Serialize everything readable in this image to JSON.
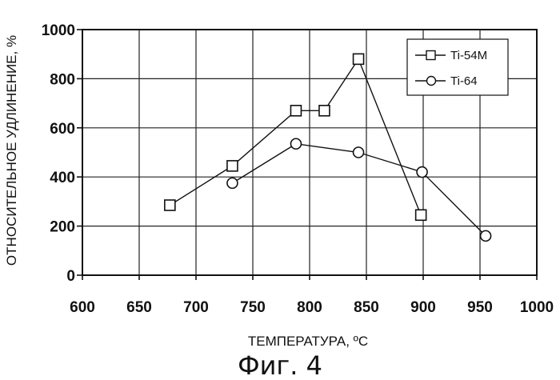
{
  "chart_data": {
    "type": "line",
    "title": "",
    "xlabel": "ТЕМПЕРАТУРА, ºС",
    "ylabel": "ОТНОСИТЕЛЬНОЕ УДЛИНЕНИЕ, %",
    "xlim": [
      600,
      1000
    ],
    "ylim": [
      0,
      1000
    ],
    "x_ticks": [
      "600",
      "650",
      "700",
      "750",
      "800",
      "850",
      "900",
      "950",
      "1000"
    ],
    "y_ticks": [
      "0",
      "200",
      "400",
      "600",
      "800",
      "1000"
    ],
    "grid": true,
    "legend_position": "top-right",
    "series": [
      {
        "name": "Ti-54M",
        "marker": "square",
        "points": [
          [
            677,
            285
          ],
          [
            732,
            445
          ],
          [
            788,
            670
          ],
          [
            813,
            670
          ],
          [
            843,
            880
          ],
          [
            898,
            245
          ]
        ]
      },
      {
        "name": "Ti-64",
        "marker": "circle",
        "points": [
          [
            732,
            375
          ],
          [
            788,
            535
          ],
          [
            843,
            500
          ],
          [
            899,
            420
          ],
          [
            955,
            160
          ]
        ]
      }
    ]
  },
  "caption": "Фиг. 4"
}
